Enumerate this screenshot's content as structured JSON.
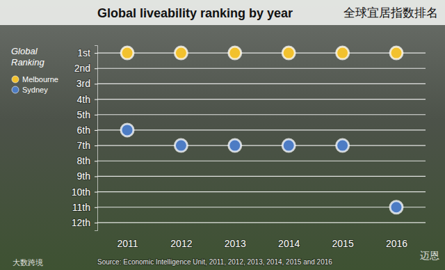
{
  "chart_data": {
    "type": "dot",
    "title": "Global liveability ranking by year",
    "subtitle": "全球宜居指数排名",
    "legend_title": "Global Ranking",
    "source": "Source: Economic Intelligence Unit, 2011, 2012, 2013, 2014, 2015 and 2016",
    "annotations": [
      "大数跨境",
      "迈恩"
    ],
    "categories": [
      "2011",
      "2012",
      "2013",
      "2014",
      "2015",
      "2016"
    ],
    "series": [
      {
        "name": "Melbourne",
        "color": "#f2c12e",
        "values": [
          1,
          1,
          1,
          1,
          1,
          1
        ]
      },
      {
        "name": "Sydney",
        "color": "#4d7cc4",
        "values": [
          6,
          7,
          7,
          7,
          7,
          11
        ]
      }
    ],
    "ylim": [
      0.5,
      12.5
    ],
    "yticks": [
      {
        "value": 1,
        "label": "1st"
      },
      {
        "value": 2,
        "label": "2nd"
      },
      {
        "value": 3,
        "label": "3rd"
      },
      {
        "value": 4,
        "label": "4th"
      },
      {
        "value": 5,
        "label": "5th"
      },
      {
        "value": 6,
        "label": "6th"
      },
      {
        "value": 7,
        "label": "7th"
      },
      {
        "value": 8,
        "label": "8th"
      },
      {
        "value": 9,
        "label": "9th"
      },
      {
        "value": 10,
        "label": "10th"
      },
      {
        "value": 11,
        "label": "11th"
      },
      {
        "value": 12,
        "label": "12th"
      }
    ],
    "grid": true,
    "legend": "top-left",
    "marker": "circle"
  }
}
